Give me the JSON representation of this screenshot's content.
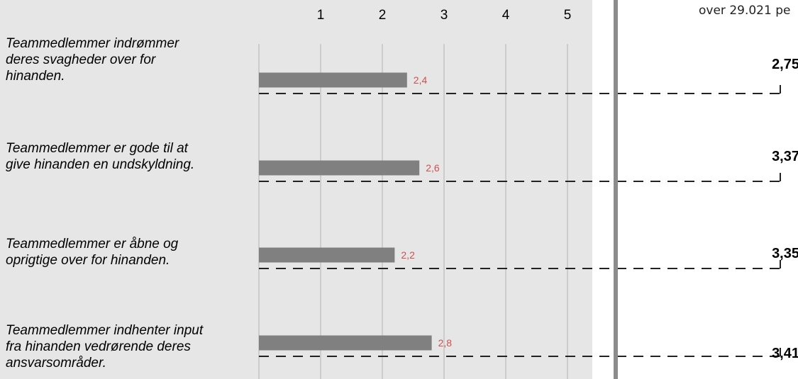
{
  "right_panel": {
    "header": "over 29.021 pe"
  },
  "chart_data": {
    "type": "bar",
    "orientation": "horizontal",
    "xlim": [
      0,
      5
    ],
    "x_ticks": [
      "1",
      "2",
      "3",
      "4",
      "5"
    ],
    "categories": [
      "Teammedlemmer indrømmer deres svagheder over for hinanden.",
      "Teammedlemmer er gode til at give hinanden en undskyldning.",
      "Teammedlemmer er åbne og oprigtige over for hinanden.",
      "Teammedlemmer indhenter input fra hinanden vedrørende deres ansvarsområder."
    ],
    "category_lines": [
      "Teammedlemmer indrømmer\nderes svagheder over for\nhinanden.",
      "Teammedlemmer er gode til at\ngive hinanden en undskyldning.",
      "Teammedlemmer er åbne og\noprigtige over for hinanden.",
      "Teammedlemmer indhenter input\nfra hinanden vedrørende deres\nansvarsområder."
    ],
    "values": [
      2.4,
      2.6,
      2.2,
      2.8
    ],
    "value_labels": [
      "2,4",
      "2,6",
      "2,2",
      "2,8"
    ],
    "benchmark_values": [
      2.75,
      3.37,
      3.35,
      3.41
    ],
    "benchmark_labels": [
      "2,75",
      "3,37",
      "3,35",
      "3,41"
    ],
    "grid": true,
    "colors": {
      "bar": "#808080",
      "value_label": "#d05050",
      "grid": "#b3b3b3"
    }
  }
}
